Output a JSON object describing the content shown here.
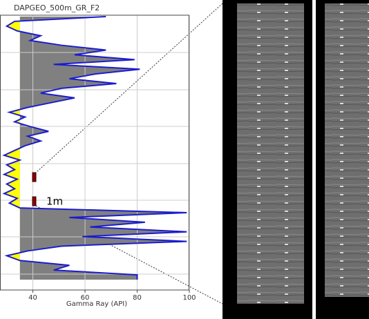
{
  "chart_data": {
    "type": "log",
    "title": "DAPGEO_500m_GR_F2",
    "x_label": "Gamma Ray (API)",
    "annotation": "1m",
    "xlim": [
      27.4,
      100
    ],
    "xticks": [
      40,
      60,
      80,
      100
    ],
    "baseline": 35,
    "grid": true,
    "color": "#1c1ccc",
    "fill_above": "#808080",
    "fill_below": "#ffff00",
    "values": [
      68,
      33,
      30,
      34,
      43,
      39,
      51,
      68,
      56,
      79,
      48,
      81,
      64,
      54,
      72,
      51,
      43,
      56,
      47,
      38,
      31,
      37,
      33,
      39,
      46,
      38,
      43,
      37,
      33,
      29,
      35,
      30,
      33,
      29,
      34,
      30,
      33,
      29,
      34,
      31,
      35,
      99,
      54,
      83,
      62,
      99,
      59,
      99,
      51,
      38,
      30,
      35,
      54,
      48,
      80,
      80
    ]
  }
}
